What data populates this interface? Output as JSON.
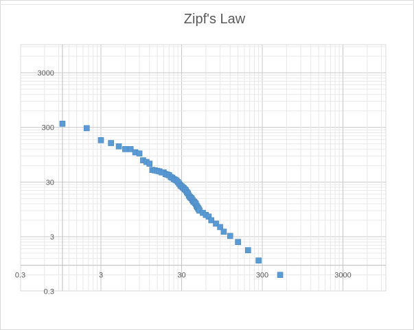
{
  "chart_data": {
    "type": "scatter",
    "title": "Zipf's Law",
    "xlabel": "",
    "ylabel": "",
    "x_scale": "log",
    "y_scale": "log",
    "xlim": [
      0.3,
      10000
    ],
    "ylim": [
      0.3,
      10000
    ],
    "x_ticks": [
      0.3,
      3,
      30,
      300,
      3000
    ],
    "y_ticks": [
      3000,
      300,
      30,
      3,
      0.3
    ],
    "x_tick_labels": [
      "0.3",
      "3",
      "30",
      "300",
      "3000"
    ],
    "y_tick_labels": [
      "3000",
      "300",
      "30",
      "3",
      "0.3"
    ],
    "grid": true,
    "legend": "none",
    "marker_color": "#5b9bd5",
    "series": [
      {
        "x": [
          1,
          2,
          3,
          4,
          5,
          6,
          7,
          8,
          9,
          10,
          11,
          12,
          13,
          14,
          15,
          16,
          17,
          18,
          19,
          20,
          21,
          22,
          23,
          24,
          25,
          26,
          27,
          28,
          29,
          30,
          31,
          32,
          33,
          34,
          35,
          36,
          37,
          38,
          39,
          40,
          41,
          42,
          43,
          44,
          45,
          46,
          47,
          48,
          49,
          50,
          55,
          60,
          65,
          70,
          80,
          90,
          100,
          120,
          150,
          200,
          270,
          500
        ],
        "y": [
          350,
          290,
          175,
          155,
          135,
          120,
          120,
          105,
          100,
          75,
          70,
          65,
          50,
          49,
          48,
          47,
          45,
          45,
          42,
          41,
          40,
          37,
          36,
          34,
          33,
          32,
          30,
          28,
          26,
          25,
          24,
          23,
          22,
          21,
          19.5,
          18.5,
          17,
          16,
          15.5,
          15,
          14,
          13.2,
          13,
          12.5,
          12,
          11,
          10.5,
          10,
          9.5,
          9,
          8.2,
          7.5,
          7,
          6,
          5.2,
          4.5,
          3.7,
          3.1,
          2.4,
          1.7,
          1.1,
          0.6
        ]
      }
    ]
  }
}
